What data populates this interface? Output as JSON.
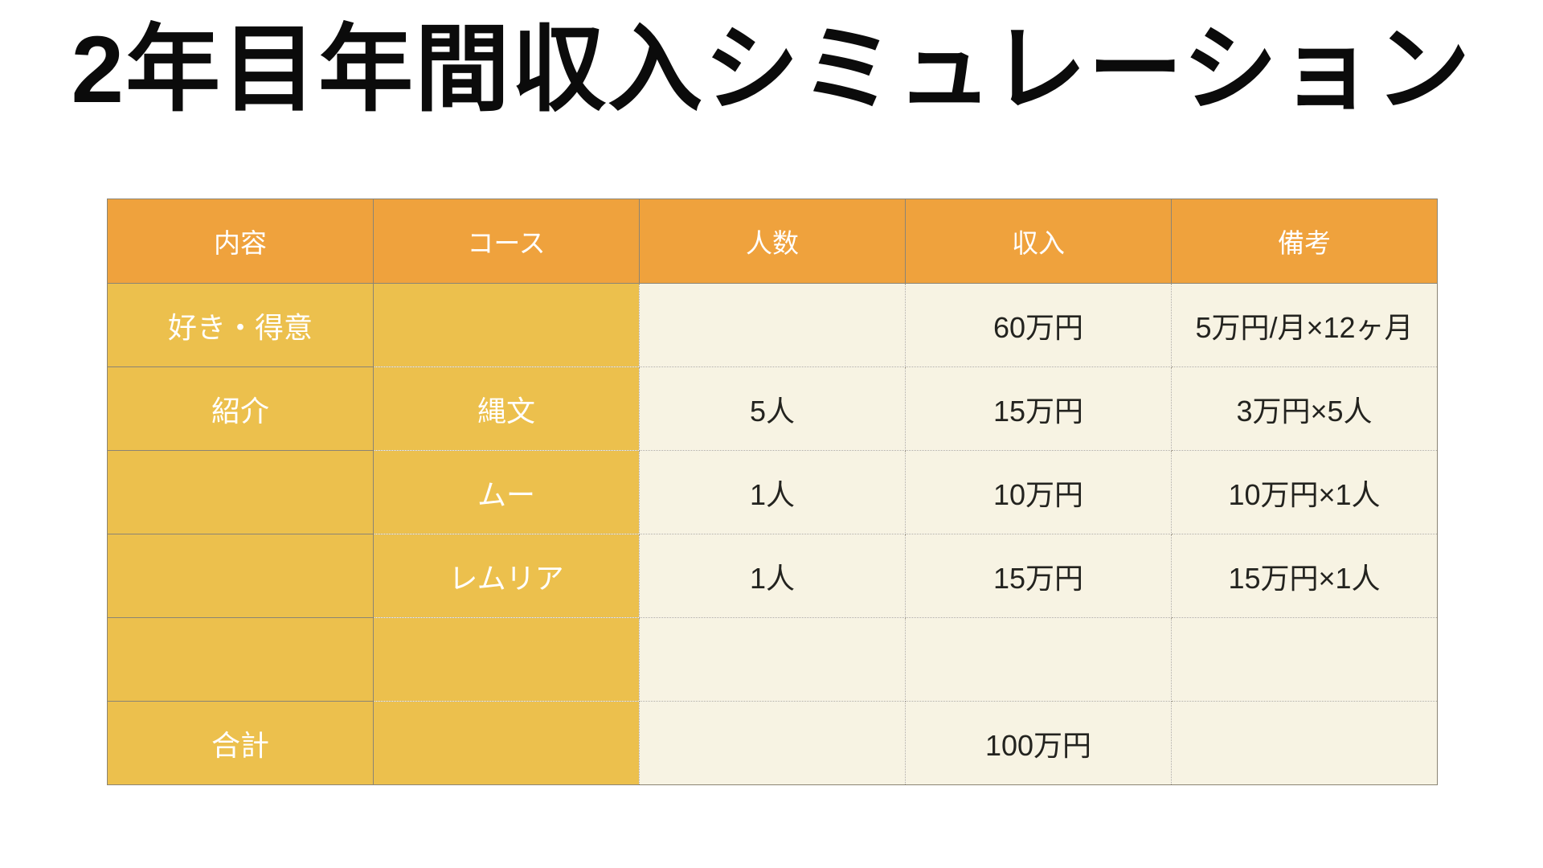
{
  "title": "2年目年間収入シミュレーション",
  "table": {
    "headers": [
      "内容",
      "コース",
      "人数",
      "収入",
      "備考"
    ],
    "rows": [
      [
        "好き・得意",
        "",
        "",
        "60万円",
        "5万円/月×12ヶ月"
      ],
      [
        "紹介",
        "縄文",
        "5人",
        "15万円",
        "3万円×5人"
      ],
      [
        "",
        "ムー",
        "1人",
        "10万円",
        "10万円×1人"
      ],
      [
        "",
        "レムリア",
        "1人",
        "15万円",
        "15万円×1人"
      ],
      [
        "",
        "",
        "",
        "",
        ""
      ],
      [
        "合計",
        "",
        "",
        "100万円",
        ""
      ]
    ]
  },
  "colors": {
    "header_bg": "#EFA23D",
    "label_bg": "#ECC04D",
    "value_bg": "#F7F3E3",
    "header_text": "#FFFFFF",
    "value_text": "#23231F",
    "solid_border": "#8B8474",
    "dotted_border": "#A9A394",
    "title_text": "#0B0B0B"
  }
}
